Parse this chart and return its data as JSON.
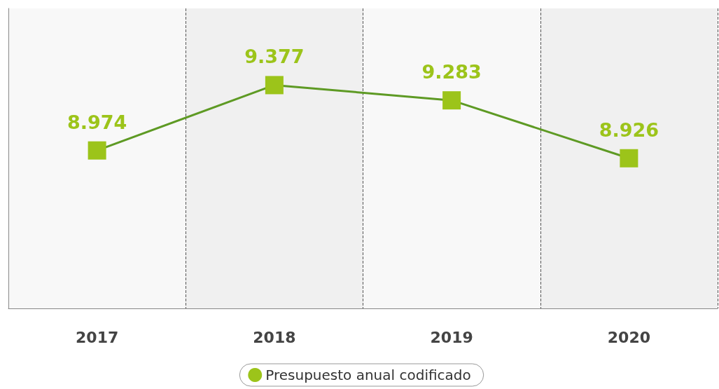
{
  "chart_data": {
    "type": "line",
    "categories": [
      "2017",
      "2018",
      "2019",
      "2020"
    ],
    "series": [
      {
        "name": "Presupuesto anual codificado",
        "color": "#9cc41a",
        "values": [
          8.974,
          9.377,
          9.283,
          8.926
        ]
      }
    ],
    "ylim": [
      8,
      9.85
    ],
    "tick_labels": "x",
    "data_labels": true,
    "marker": "square",
    "line_style": "solid",
    "grid": "x",
    "legend": "bottom"
  }
}
